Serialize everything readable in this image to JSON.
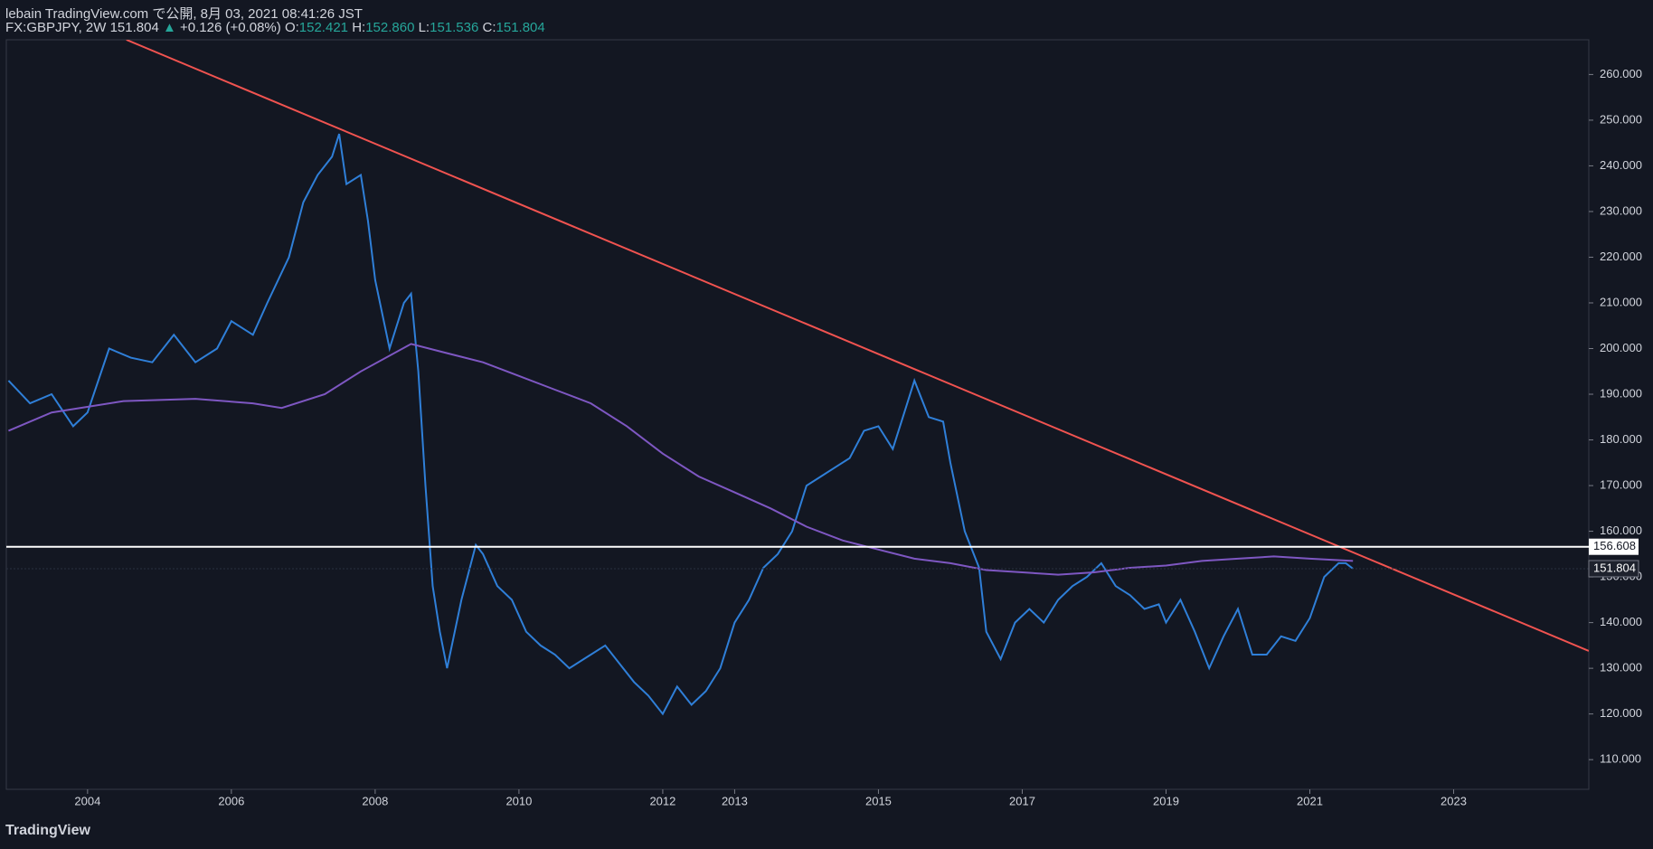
{
  "header": {
    "line1": "lebain TradingView.com で公開, 8月 03, 2021 08:41:26 JST",
    "line2": [
      "FX:GBPJPY, 2W 151.804",
      "▲",
      "+0.126 (+0.08%)",
      "O:",
      "152.421",
      "H:",
      "152.860",
      "L:",
      "151.536",
      "C:",
      "151.804"
    ]
  },
  "footer": {
    "logo": "TradingView"
  },
  "chart_data": {
    "type": "line",
    "xlim": [
      2002.87,
      2024.88
    ],
    "xticks": [
      2004,
      2006,
      2008,
      2010,
      2012,
      2013,
      2015,
      2017,
      2019,
      2021,
      2023
    ],
    "ylim": [
      103.5,
      267.6
    ],
    "yticks": [
      {
        "value": 110,
        "label": "110.000"
      },
      {
        "value": 120,
        "label": "120.000"
      },
      {
        "value": 130,
        "label": "130.000"
      },
      {
        "value": 140,
        "label": "140.000"
      },
      {
        "value": 150,
        "label": "150.000"
      },
      {
        "value": 160,
        "label": "160.000"
      },
      {
        "value": 170,
        "label": "170.000"
      },
      {
        "value": 180,
        "label": "180.000"
      },
      {
        "value": 190,
        "label": "190.000"
      },
      {
        "value": 200,
        "label": "200.000"
      },
      {
        "value": 210,
        "label": "210.000"
      },
      {
        "value": 220,
        "label": "220.000"
      },
      {
        "value": 230,
        "label": "230.000"
      },
      {
        "value": 240,
        "label": "240.000"
      },
      {
        "value": 250,
        "label": "250.000"
      },
      {
        "value": 260,
        "label": "260.000"
      }
    ],
    "grid": false,
    "series": [
      {
        "color": "#2f7fd8",
        "x": [
          2002.9,
          2003.2,
          2003.5,
          2003.8,
          2004.0,
          2004.3,
          2004.6,
          2004.9,
          2005.2,
          2005.5,
          2005.8,
          2006.0,
          2006.3,
          2006.5,
          2006.8,
          2007.0,
          2007.2,
          2007.4,
          2007.5,
          2007.6,
          2007.8,
          2007.9,
          2008.0,
          2008.2,
          2008.4,
          2008.5,
          2008.6,
          2008.7,
          2008.8,
          2008.9,
          2009.0,
          2009.2,
          2009.4,
          2009.5,
          2009.7,
          2009.9,
          2010.1,
          2010.3,
          2010.5,
          2010.7,
          2010.9,
          2011.2,
          2011.4,
          2011.6,
          2011.8,
          2012.0,
          2012.2,
          2012.4,
          2012.6,
          2012.8,
          2013.0,
          2013.2,
          2013.4,
          2013.6,
          2013.8,
          2014.0,
          2014.2,
          2014.4,
          2014.6,
          2014.8,
          2015.0,
          2015.2,
          2015.4,
          2015.5,
          2015.7,
          2015.9,
          2016.0,
          2016.2,
          2016.4,
          2016.5,
          2016.7,
          2016.9,
          2017.1,
          2017.3,
          2017.5,
          2017.7,
          2017.9,
          2018.1,
          2018.3,
          2018.5,
          2018.7,
          2018.9,
          2019.0,
          2019.2,
          2019.4,
          2019.6,
          2019.8,
          2020.0,
          2020.2,
          2020.4,
          2020.6,
          2020.8,
          2021.0,
          2021.2,
          2021.4,
          2021.5,
          2021.6
        ],
        "values": [
          193,
          188,
          190,
          183,
          186,
          200,
          198,
          197,
          203,
          197,
          200,
          206,
          203,
          210,
          220,
          232,
          238,
          242,
          247,
          236,
          238,
          228,
          215,
          200,
          210,
          212,
          195,
          170,
          148,
          138,
          130,
          145,
          157,
          155,
          148,
          145,
          138,
          135,
          133,
          130,
          132,
          135,
          131,
          127,
          124,
          120,
          126,
          122,
          125,
          130,
          140,
          145,
          152,
          155,
          160,
          170,
          172,
          174,
          176,
          182,
          183,
          178,
          188,
          193,
          185,
          184,
          175,
          160,
          152,
          138,
          132,
          140,
          143,
          140,
          145,
          148,
          150,
          153,
          148,
          146,
          143,
          144,
          140,
          145,
          138,
          130,
          137,
          143,
          133,
          133,
          137,
          136,
          141,
          150,
          153,
          153,
          151.804
        ]
      },
      {
        "color": "#7e57c2",
        "x": [
          2002.9,
          2003.5,
          2004.5,
          2005.5,
          2006.3,
          2006.7,
          2007.3,
          2007.8,
          2008.5,
          2009.0,
          2009.5,
          2010.0,
          2010.5,
          2011.0,
          2011.5,
          2012.0,
          2012.5,
          2013.0,
          2013.5,
          2014.0,
          2014.5,
          2015.0,
          2015.5,
          2016.0,
          2016.5,
          2017.0,
          2017.5,
          2018.0,
          2018.5,
          2019.0,
          2019.5,
          2020.0,
          2020.5,
          2021.0,
          2021.6
        ],
        "values": [
          182,
          186,
          188.5,
          189,
          188,
          187,
          190,
          195,
          201,
          199,
          197,
          194,
          191,
          188,
          183,
          177,
          172,
          168.5,
          165,
          161,
          158,
          156,
          154,
          153,
          151.5,
          151,
          150.5,
          151,
          152,
          152.5,
          153.5,
          154,
          154.5,
          154,
          153.5
        ]
      }
    ],
    "trend_line": {
      "color": "#f05350",
      "x": [
        2004.54,
        2024.88
      ],
      "values": [
        267.6,
        133.8
      ]
    },
    "price_line": 156.608,
    "last_price": 151.804
  }
}
